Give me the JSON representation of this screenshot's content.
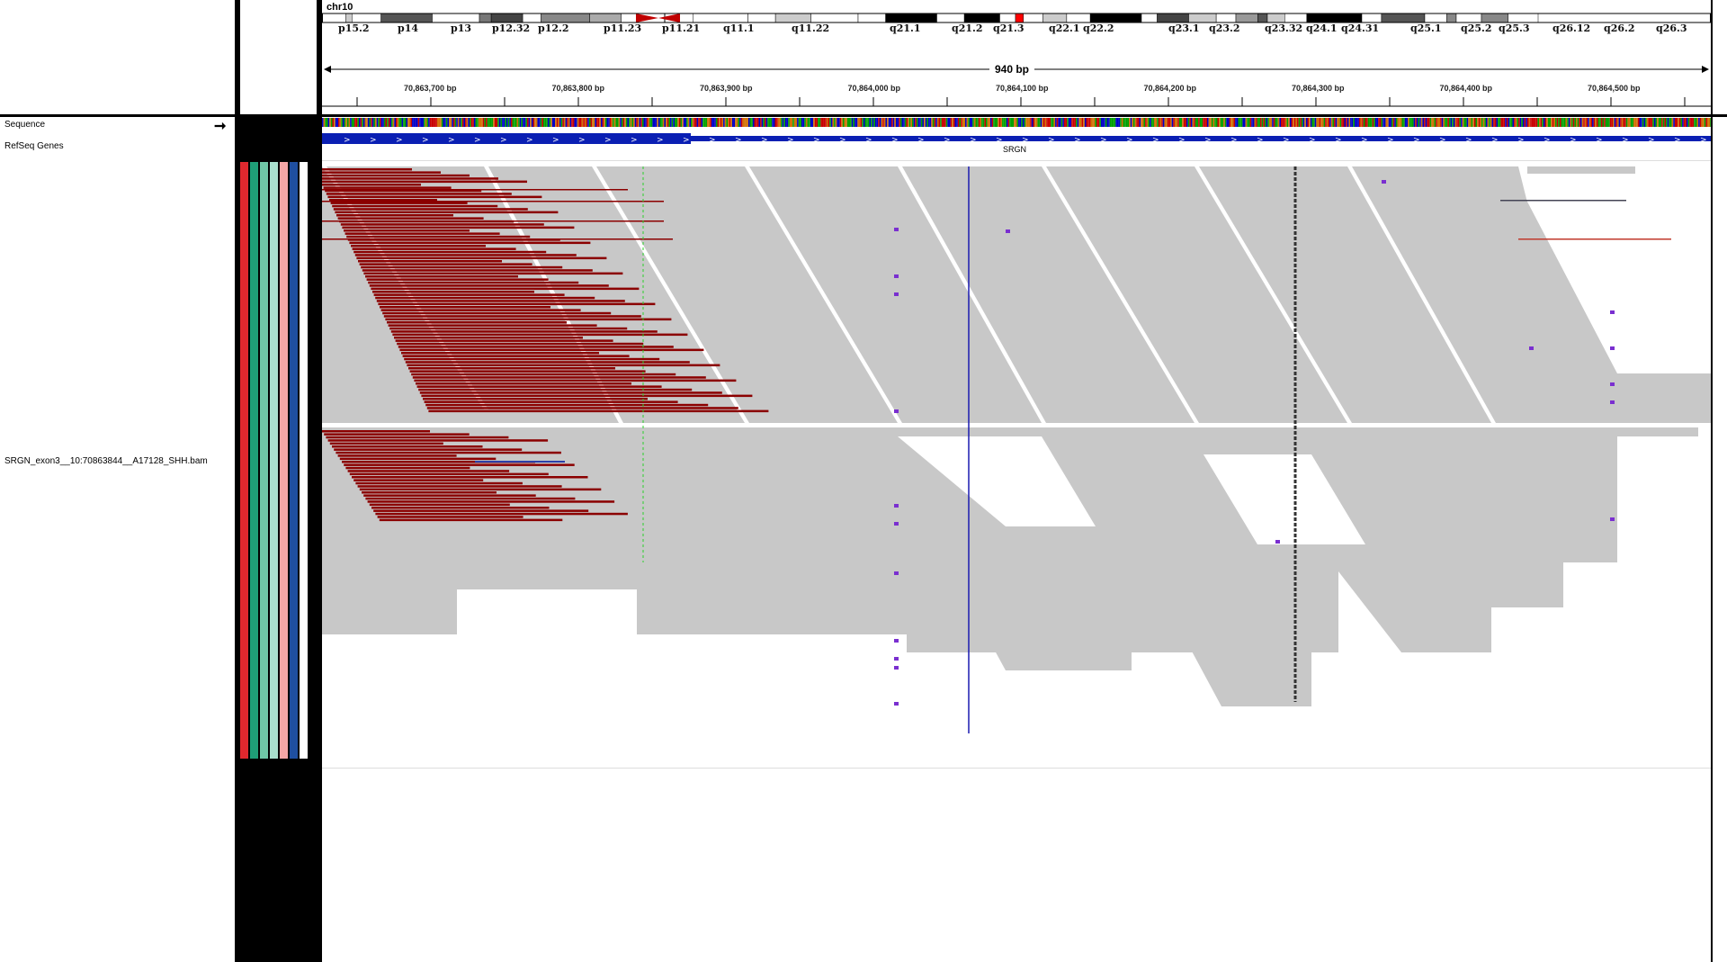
{
  "chromosome": "chr10",
  "ideogram_bands": [
    "p15.2",
    "p14",
    "p13",
    "p12.32",
    "p12.2",
    "p11.23",
    "p11.21",
    "q11.1",
    "q11.22",
    "q21.1",
    "q21.2",
    "q21.3",
    "q22.1",
    "q22.2",
    "q23.1",
    "q23.2",
    "q23.32",
    "q24.1",
    "q24.31",
    "q25.1",
    "q25.2",
    "q25.3",
    "q26.12",
    "q26.2",
    "q26.3"
  ],
  "ruler": {
    "span": "940 bp",
    "ticks": [
      "70,863,700 bp",
      "70,863,800 bp",
      "70,863,900 bp",
      "70,864,000 bp",
      "70,864,100 bp",
      "70,864,200 bp",
      "70,864,300 bp",
      "70,864,400 bp",
      "70,864,500 bp"
    ]
  },
  "tracks": {
    "sequence": "Sequence",
    "refseq": "RefSeq Genes",
    "gene_name": "SRGN",
    "bam": "SRGN_exon3__10:70863844__A17128_SHH.bam"
  },
  "colors": {
    "read": "#c8c8c8",
    "soft_clip_red": "#8b0000",
    "gene_blue": "#0a1fb3",
    "attr_red": "#e0282e",
    "attr_teal": "#1f9e77",
    "attr_mint": "#8fd3bd",
    "attr_pink": "#f4a6a6",
    "attr_blue": "#1f4fa0"
  },
  "icons": {
    "strand_arrow": "right-arrow-icon"
  }
}
